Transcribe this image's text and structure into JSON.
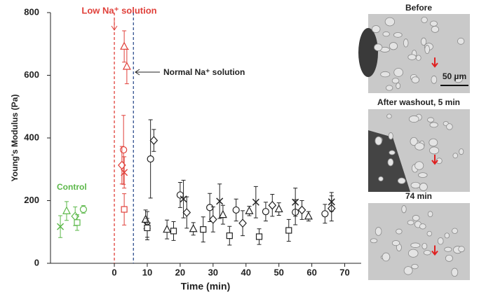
{
  "chart_data": {
    "type": "scatter",
    "xlabel": "Time (min)",
    "ylabel": "Young's Modulus (Pa)",
    "xlim": [
      -19.4,
      75
    ],
    "ylim": [
      0,
      800
    ],
    "xticks": [
      0,
      10,
      20,
      30,
      40,
      50,
      60,
      70
    ],
    "yticks": [
      0,
      200,
      400,
      600,
      800
    ],
    "vlines": [
      {
        "x": 0,
        "color": "#e0403a"
      },
      {
        "x": 5.8,
        "color": "#2f4f8f"
      }
    ],
    "annotations": {
      "low": "Low Na⁺ solution",
      "normal": "Normal Na⁺ solution",
      "control": "Control"
    },
    "series": [
      {
        "color": "#5cb84a",
        "marker": "x",
        "x": [
          -16.4
        ],
        "values": [
          117
        ],
        "errors": [
          35
        ]
      },
      {
        "color": "#5cb84a",
        "marker": "triangle",
        "x": [
          -14.5
        ],
        "values": [
          167
        ],
        "errors": [
          30
        ]
      },
      {
        "color": "#5cb84a",
        "marker": "diamond",
        "x": [
          -11.9
        ],
        "values": [
          150
        ],
        "errors": [
          30
        ]
      },
      {
        "color": "#5cb84a",
        "marker": "square",
        "x": [
          -11.3
        ],
        "values": [
          130
        ],
        "errors": [
          25
        ]
      },
      {
        "color": "#5cb84a",
        "marker": "circle",
        "x": [
          -9.4
        ],
        "values": [
          172
        ],
        "errors": [
          12
        ]
      },
      {
        "color": "#e0403a",
        "marker": "triangle",
        "x": [
          3.0,
          3.8
        ],
        "values": [
          692,
          628
        ],
        "errors": [
          50,
          55
        ]
      },
      {
        "color": "#e0403a",
        "marker": "circle",
        "x": [
          2.8
        ],
        "values": [
          362
        ],
        "errors": [
          110
        ]
      },
      {
        "color": "#e0403a",
        "marker": "diamond",
        "x": [
          2.3
        ],
        "values": [
          313
        ],
        "errors": [
          60
        ]
      },
      {
        "color": "#e0403a",
        "marker": "x",
        "x": [
          3.0
        ],
        "values": [
          290
        ],
        "errors": [
          50
        ]
      },
      {
        "color": "#e0403a",
        "marker": "square",
        "x": [
          3.0
        ],
        "values": [
          172
        ],
        "errors": [
          50
        ]
      },
      {
        "color": "#222222",
        "marker": "circle",
        "x": [
          11,
          20,
          29,
          37,
          46,
          55,
          64
        ],
        "values": [
          333,
          218,
          178,
          170,
          165,
          163,
          158
        ],
        "errors": [
          125,
          40,
          45,
          35,
          30,
          40,
          30
        ]
      },
      {
        "color": "#222222",
        "marker": "diamond",
        "x": [
          12,
          22,
          30,
          39,
          48,
          57,
          66
        ],
        "values": [
          392,
          162,
          140,
          128,
          185,
          170,
          175
        ],
        "errors": [
          35,
          50,
          40,
          40,
          35,
          30,
          40
        ]
      },
      {
        "color": "#222222",
        "marker": "x",
        "x": [
          10,
          21,
          32,
          43,
          55,
          66
        ],
        "values": [
          120,
          205,
          198,
          195,
          195,
          196
        ],
        "errors": [
          45,
          60,
          55,
          50,
          45,
          30
        ]
      },
      {
        "color": "#222222",
        "marker": "triangle",
        "x": [
          9.5,
          16,
          24,
          33,
          41,
          50,
          59
        ],
        "values": [
          140,
          108,
          110,
          155,
          167,
          173,
          150
        ],
        "errors": [
          30,
          30,
          20,
          30,
          15,
          20,
          15
        ]
      },
      {
        "color": "#222222",
        "marker": "square",
        "x": [
          10,
          18,
          27,
          35,
          44,
          53
        ],
        "values": [
          113,
          103,
          108,
          88,
          85,
          105
        ],
        "errors": [
          30,
          30,
          40,
          30,
          25,
          35
        ]
      }
    ]
  },
  "images": [
    {
      "title": "Before",
      "scale": "50 µm"
    },
    {
      "title": "After washout, 5 min"
    },
    {
      "title": "74 min"
    }
  ]
}
